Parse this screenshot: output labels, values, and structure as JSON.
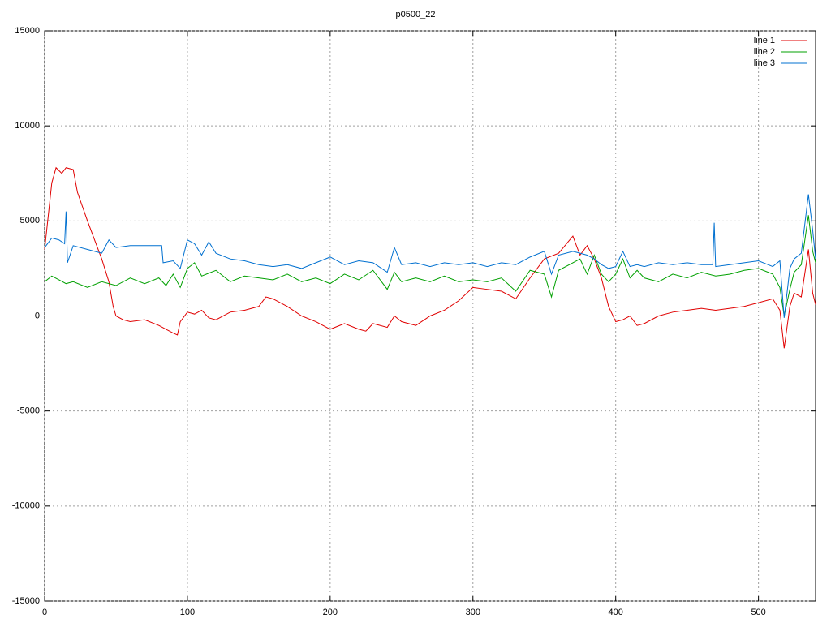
{
  "chart_data": {
    "type": "line",
    "title": "p0500_22",
    "xlim": [
      0,
      540
    ],
    "xticks": [
      0,
      100,
      200,
      300,
      400,
      500
    ],
    "ylim": [
      -15000,
      15000
    ],
    "yticks": [
      -15000,
      -10000,
      -5000,
      0,
      5000,
      10000,
      15000
    ],
    "grid": true,
    "legend": "top-right",
    "series": [
      {
        "name": "line 1",
        "color": "#e00000",
        "x": [
          0,
          5,
          8,
          12,
          15,
          20,
          23,
          30,
          35,
          40,
          45,
          48,
          50,
          55,
          60,
          70,
          80,
          85,
          90,
          93,
          95,
          100,
          105,
          110,
          115,
          120,
          130,
          140,
          150,
          155,
          160,
          170,
          180,
          190,
          200,
          210,
          220,
          225,
          230,
          240,
          245,
          250,
          260,
          270,
          280,
          290,
          300,
          310,
          320,
          330,
          340,
          350,
          360,
          370,
          375,
          380,
          385,
          390,
          395,
          400,
          405,
          410,
          415,
          420,
          430,
          440,
          450,
          460,
          470,
          480,
          490,
          500,
          510,
          515,
          518,
          522,
          525,
          530,
          535,
          538,
          540
        ],
        "values": [
          3500,
          7000,
          7800,
          7500,
          7800,
          7700,
          6500,
          5000,
          4000,
          3000,
          1800,
          500,
          0,
          -200,
          -300,
          -200,
          -500,
          -700,
          -900,
          -1000,
          -300,
          200,
          100,
          300,
          -100,
          -200,
          200,
          300,
          500,
          1000,
          900,
          500,
          0,
          -300,
          -700,
          -400,
          -700,
          -800,
          -400,
          -600,
          0,
          -300,
          -500,
          0,
          300,
          800,
          1500,
          1400,
          1300,
          900,
          2000,
          3000,
          3300,
          4200,
          3200,
          3700,
          3000,
          2000,
          500,
          -300,
          -200,
          0,
          -500,
          -400,
          0,
          200,
          300,
          400,
          300,
          400,
          500,
          700,
          900,
          300,
          -1700,
          500,
          1200,
          1000,
          3500,
          1200,
          600
        ]
      },
      {
        "name": "line 2",
        "color": "#00a000",
        "x": [
          0,
          5,
          10,
          15,
          20,
          30,
          40,
          50,
          60,
          70,
          80,
          85,
          90,
          95,
          100,
          105,
          110,
          120,
          130,
          140,
          150,
          160,
          170,
          180,
          190,
          200,
          210,
          220,
          230,
          240,
          245,
          250,
          260,
          270,
          280,
          290,
          300,
          310,
          320,
          330,
          340,
          350,
          355,
          360,
          370,
          375,
          380,
          385,
          390,
          395,
          400,
          405,
          410,
          415,
          420,
          430,
          440,
          450,
          460,
          470,
          480,
          490,
          500,
          510,
          515,
          518,
          522,
          525,
          530,
          535,
          538,
          540
        ],
        "values": [
          1800,
          2100,
          1900,
          1700,
          1800,
          1500,
          1800,
          1600,
          2000,
          1700,
          2000,
          1600,
          2200,
          1500,
          2500,
          2800,
          2100,
          2400,
          1800,
          2100,
          2000,
          1900,
          2200,
          1800,
          2000,
          1700,
          2200,
          1900,
          2400,
          1400,
          2300,
          1800,
          2000,
          1800,
          2100,
          1800,
          1900,
          1800,
          2000,
          1300,
          2400,
          2200,
          1000,
          2400,
          2800,
          3000,
          2200,
          3200,
          2200,
          1800,
          2200,
          3000,
          2000,
          2400,
          2000,
          1800,
          2200,
          2000,
          2300,
          2100,
          2200,
          2400,
          2500,
          2200,
          1500,
          0,
          1400,
          2300,
          2700,
          5300,
          3400,
          2800
        ]
      },
      {
        "name": "line 3",
        "color": "#0070d0",
        "x": [
          0,
          5,
          10,
          14,
          15,
          16,
          20,
          30,
          40,
          45,
          50,
          60,
          70,
          82,
          83,
          90,
          95,
          100,
          105,
          110,
          115,
          120,
          130,
          140,
          150,
          160,
          170,
          180,
          190,
          200,
          210,
          220,
          230,
          240,
          245,
          250,
          260,
          270,
          280,
          290,
          300,
          310,
          320,
          330,
          340,
          350,
          355,
          360,
          370,
          375,
          380,
          385,
          390,
          395,
          400,
          405,
          410,
          415,
          420,
          430,
          440,
          450,
          460,
          468,
          469,
          470,
          480,
          490,
          500,
          510,
          515,
          518,
          522,
          525,
          530,
          535,
          538,
          540
        ],
        "values": [
          3600,
          4100,
          4000,
          3800,
          5500,
          2800,
          3700,
          3500,
          3300,
          4000,
          3600,
          3700,
          3700,
          3700,
          2800,
          2900,
          2500,
          4000,
          3800,
          3200,
          3900,
          3300,
          3000,
          2900,
          2700,
          2600,
          2700,
          2500,
          2800,
          3100,
          2700,
          2900,
          2800,
          2300,
          3600,
          2700,
          2800,
          2600,
          2800,
          2700,
          2800,
          2600,
          2800,
          2700,
          3100,
          3400,
          2200,
          3200,
          3400,
          3300,
          3200,
          3000,
          2700,
          2500,
          2600,
          3400,
          2600,
          2700,
          2600,
          2800,
          2700,
          2800,
          2700,
          2700,
          4900,
          2600,
          2700,
          2800,
          2900,
          2600,
          2900,
          -100,
          2500,
          3000,
          3300,
          6400,
          4500,
          3000
        ]
      }
    ]
  }
}
